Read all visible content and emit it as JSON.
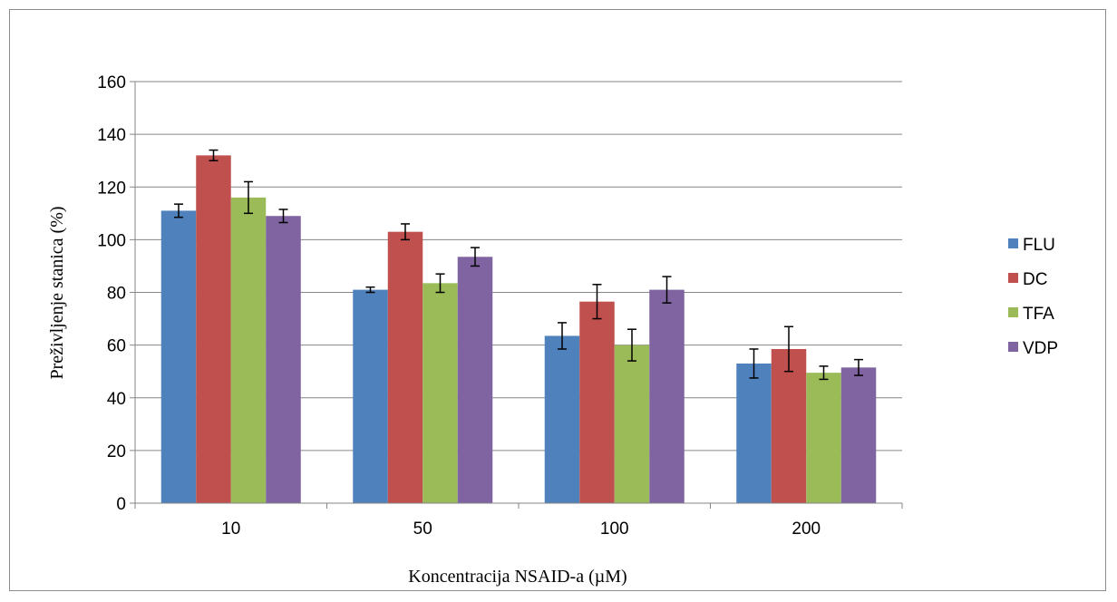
{
  "chart_data": {
    "type": "bar",
    "title": "",
    "xlabel": "Koncentracija NSAID-a (µM)",
    "ylabel": "Preživljenje stanica (%)",
    "ylim": [
      0,
      160
    ],
    "yticks": [
      "0",
      "20",
      "40",
      "60",
      "80",
      "100",
      "120",
      "140",
      "160"
    ],
    "grid": true,
    "legend_position": "right",
    "categories": [
      "10",
      "50",
      "100",
      "200"
    ],
    "series": [
      {
        "name": "FLU",
        "color": "#4F81BD",
        "values": [
          111,
          81,
          63.5,
          53
        ],
        "errors": [
          2.5,
          1,
          5,
          5.5
        ]
      },
      {
        "name": "DC",
        "color": "#C0504D",
        "values": [
          132,
          103,
          76.5,
          58.5
        ],
        "errors": [
          2,
          3,
          6.5,
          8.5
        ]
      },
      {
        "name": "TFA",
        "color": "#9BBB59",
        "values": [
          116,
          83.5,
          60,
          49.5
        ],
        "errors": [
          6,
          3.5,
          6,
          2.5
        ]
      },
      {
        "name": "VDP",
        "color": "#8064A2",
        "values": [
          109,
          93.5,
          81,
          51.5
        ],
        "errors": [
          2.5,
          3.5,
          5,
          3
        ]
      }
    ]
  }
}
